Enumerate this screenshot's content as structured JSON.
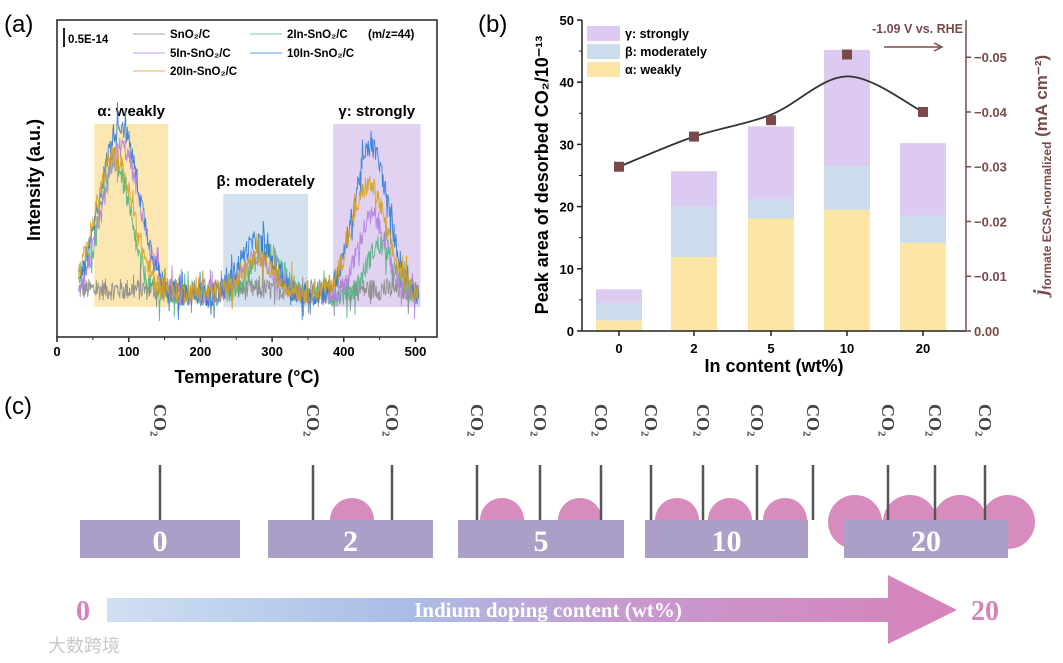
{
  "panel_labels": {
    "a": "(a)",
    "b": "(b)",
    "c": "(c)"
  },
  "chart_data": [
    {
      "id": "a",
      "type": "line",
      "title": "",
      "xlabel": "Temperature (°C)",
      "ylabel": "Intensity (a.u.)",
      "xlim": [
        0,
        530
      ],
      "ylim": [
        0,
        1
      ],
      "xticks": [
        0,
        100,
        200,
        300,
        400,
        500
      ],
      "scale_bar_label": "0.5E-14",
      "annotation": "(m/z=44)",
      "legend_placement": "top",
      "regions": [
        {
          "label": "α: weakly",
          "range": [
            52,
            155
          ],
          "color": "#fbe3a6"
        },
        {
          "label": "β: moderately",
          "range": [
            232,
            350
          ],
          "color": "#cddcec"
        },
        {
          "label": "γ: strongly",
          "range": [
            385,
            507
          ],
          "color": "#dccaf0"
        }
      ],
      "x_range_measured": [
        30,
        505
      ],
      "noise": 0.035,
      "series": [
        {
          "name": "SnO₂/C",
          "color": "#8a8a8a",
          "baseline": 0.15,
          "peaks": []
        },
        {
          "name": "2In-SnO₂/C",
          "color": "#4fb47c",
          "baseline": 0.13,
          "peaks": [
            [
              80,
              0.42,
              22
            ],
            [
              292,
              0.14,
              22
            ],
            [
              450,
              0.16,
              18
            ]
          ]
        },
        {
          "name": "5In-SnO₂/C",
          "color": "#b27fe0",
          "baseline": 0.13,
          "peaks": [
            [
              90,
              0.47,
              26
            ],
            [
              280,
              0.12,
              24
            ],
            [
              440,
              0.25,
              20
            ]
          ]
        },
        {
          "name": "10In-SnO₂/C",
          "color": "#2f7ad8",
          "baseline": 0.13,
          "peaks": [
            [
              88,
              0.54,
              27
            ],
            [
              278,
              0.17,
              24
            ],
            [
              438,
              0.47,
              24
            ]
          ]
        },
        {
          "name": "20In-SnO₂/C",
          "color": "#d4a020",
          "baseline": 0.14,
          "peaks": [
            [
              80,
              0.43,
              26
            ],
            [
              280,
              0.1,
              24
            ],
            [
              435,
              0.34,
              24
            ]
          ]
        }
      ]
    },
    {
      "id": "b",
      "type": "bar",
      "stacked": true,
      "categories": [
        "0",
        "2",
        "5",
        "10",
        "20"
      ],
      "xlabel": "In content (wt%)",
      "ylabel": "Peak area of desorbed CO₂/10⁻¹³",
      "ylim": [
        0,
        50
      ],
      "yticks": [
        0,
        10,
        20,
        30,
        40,
        50
      ],
      "legend_placement": "top-left",
      "series": [
        {
          "name": "α: weakly",
          "color": "#fbe6a6",
          "values": [
            1.7,
            11.9,
            18.1,
            19.5,
            14.2
          ]
        },
        {
          "name": "β: moderately",
          "color": "#cddcec",
          "values": [
            2.8,
            8.1,
            3.0,
            7.0,
            4.3
          ]
        },
        {
          "name": "γ: strongly",
          "color": "#dccaf0",
          "values": [
            2.2,
            5.7,
            11.8,
            18.7,
            11.7
          ]
        }
      ],
      "secondary_axis": {
        "label_main": "j",
        "label_sub": "formate ECSA-normalized",
        "label_unit": " (mA cm⁻²)",
        "color": "#7a4a4a",
        "ylim": [
          0,
          -0.0568
        ],
        "yticks": [
          0,
          -0.01,
          -0.02,
          -0.03,
          -0.04,
          -0.05
        ],
        "yticklabels": [
          "0.00",
          "−0.01",
          "−0.02",
          "−0.03",
          "−0.04",
          "−0.05"
        ],
        "values": [
          -0.03,
          -0.0355,
          -0.0385,
          -0.0505,
          -0.04
        ],
        "fit_line": [
          -0.03,
          -0.0355,
          -0.0395,
          -0.0465,
          -0.04
        ],
        "marker_color": "#7a4a4a",
        "annotation": "-1.09 V vs. RHE"
      }
    }
  ],
  "schematic": {
    "molecule_label": "CO₂",
    "substrates": [
      {
        "label": "0",
        "co2_count": 1,
        "particles": 0
      },
      {
        "label": "2",
        "co2_count": 2,
        "particles": 1
      },
      {
        "label": "5",
        "co2_count": 3,
        "particles": 2
      },
      {
        "label": "10",
        "co2_count": 4,
        "particles": 3
      },
      {
        "label": "20",
        "co2_count": 3,
        "particles": 4
      }
    ],
    "arrow_label": "Indium doping content (wt%)",
    "arrow_start": "0",
    "arrow_end": "20",
    "substrate_color": "#ab9fc8",
    "particle_color": "#d88bbd"
  },
  "watermark": "大数跨境"
}
